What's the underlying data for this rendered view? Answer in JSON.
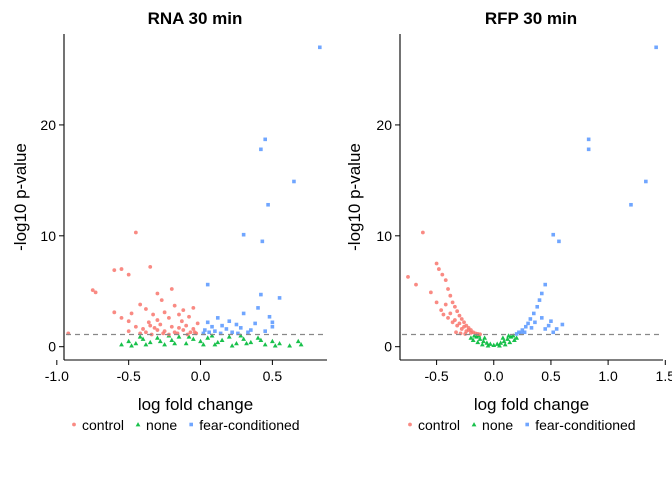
{
  "chart_data": [
    {
      "type": "scatter",
      "title": "RNA 30 min",
      "xlabel": "log fold change",
      "ylabel": "-log10 p-value",
      "xlim": [
        -0.95,
        0.88
      ],
      "ylim": [
        -1.2,
        28.2
      ],
      "xticks": [
        -1.0,
        -0.5,
        0.0,
        0.5
      ],
      "xtick_labels": [
        "-1.0",
        "-0.5",
        "0.0",
        "0.5"
      ],
      "yticks": [
        0,
        10,
        20
      ],
      "ytick_labels": [
        "0",
        "10",
        "20"
      ],
      "threshold_y": 1.1,
      "grid": false,
      "legend_position": "bottom",
      "series": [
        {
          "name": "control",
          "color": "#F8766D",
          "marker": "circle",
          "points": [
            [
              -0.92,
              1.2
            ],
            [
              -0.75,
              5.1
            ],
            [
              -0.73,
              4.9
            ],
            [
              -0.6,
              6.9
            ],
            [
              -0.55,
              7.0
            ],
            [
              -0.5,
              6.5
            ],
            [
              -0.45,
              10.3
            ],
            [
              -0.35,
              7.2
            ],
            [
              -0.3,
              4.8
            ],
            [
              -0.27,
              4.2
            ],
            [
              -0.2,
              5.2
            ],
            [
              -0.18,
              3.7
            ],
            [
              -0.6,
              3.1
            ],
            [
              -0.55,
              2.6
            ],
            [
              -0.5,
              2.3
            ],
            [
              -0.48,
              3.0
            ],
            [
              -0.42,
              3.8
            ],
            [
              -0.38,
              3.4
            ],
            [
              -0.33,
              2.9
            ],
            [
              -0.3,
              2.4
            ],
            [
              -0.25,
              3.1
            ],
            [
              -0.22,
              2.6
            ],
            [
              -0.15,
              2.9
            ],
            [
              -0.12,
              3.3
            ],
            [
              -0.08,
              2.7
            ],
            [
              -0.05,
              3.5
            ],
            [
              -0.45,
              1.8
            ],
            [
              -0.4,
              1.6
            ],
            [
              -0.35,
              1.9
            ],
            [
              -0.3,
              1.5
            ],
            [
              -0.28,
              2.0
            ],
            [
              -0.25,
              1.4
            ],
            [
              -0.2,
              1.8
            ],
            [
              -0.18,
              1.3
            ],
            [
              -0.15,
              1.7
            ],
            [
              -0.12,
              1.5
            ],
            [
              -0.1,
              1.9
            ],
            [
              -0.07,
              1.3
            ],
            [
              -0.05,
              1.6
            ],
            [
              -0.03,
              1.2
            ],
            [
              -0.42,
              1.2
            ],
            [
              -0.38,
              1.3
            ],
            [
              -0.34,
              1.1
            ],
            [
              -0.26,
              1.2
            ],
            [
              -0.22,
              1.1
            ],
            [
              -0.16,
              1.2
            ],
            [
              -0.09,
              1.1
            ],
            [
              -0.04,
              1.3
            ],
            [
              -0.5,
              1.4
            ],
            [
              -0.32,
              1.7
            ],
            [
              -0.02,
              2.1
            ],
            [
              -0.13,
              2.3
            ],
            [
              -0.36,
              2.2
            ]
          ]
        },
        {
          "name": "none",
          "color": "#00BA38",
          "marker": "triangle",
          "points": [
            [
              -0.55,
              0.2
            ],
            [
              -0.5,
              0.5
            ],
            [
              -0.45,
              0.3
            ],
            [
              -0.4,
              0.7
            ],
            [
              -0.35,
              0.4
            ],
            [
              -0.3,
              0.8
            ],
            [
              -0.25,
              0.2
            ],
            [
              -0.2,
              0.6
            ],
            [
              -0.15,
              0.9
            ],
            [
              -0.1,
              0.3
            ],
            [
              -0.05,
              0.7
            ],
            [
              0.0,
              0.5
            ],
            [
              0.05,
              0.8
            ],
            [
              0.1,
              0.2
            ],
            [
              0.15,
              0.6
            ],
            [
              0.2,
              0.9
            ],
            [
              0.25,
              0.3
            ],
            [
              0.3,
              0.7
            ],
            [
              0.35,
              0.4
            ],
            [
              0.4,
              0.8
            ],
            [
              0.45,
              0.2
            ],
            [
              0.5,
              0.5
            ],
            [
              0.55,
              0.3
            ],
            [
              -0.48,
              0.1
            ],
            [
              -0.38,
              0.2
            ],
            [
              -0.28,
              0.5
            ],
            [
              -0.18,
              0.3
            ],
            [
              -0.08,
              0.9
            ],
            [
              0.02,
              0.2
            ],
            [
              0.12,
              0.4
            ],
            [
              0.22,
              0.1
            ],
            [
              0.32,
              0.3
            ],
            [
              0.42,
              0.6
            ],
            [
              0.52,
              0.1
            ],
            [
              0.68,
              0.5
            ],
            [
              0.7,
              0.2
            ],
            [
              0.62,
              0.1
            ],
            [
              -0.42,
              0.9
            ],
            [
              -0.22,
              1.0
            ],
            [
              0.08,
              1.0
            ],
            [
              0.28,
              1.0
            ]
          ]
        },
        {
          "name": "fear-conditioned",
          "color": "#619CFF",
          "marker": "square",
          "points": [
            [
              0.83,
              27.0
            ],
            [
              0.45,
              18.7
            ],
            [
              0.42,
              17.8
            ],
            [
              0.65,
              14.9
            ],
            [
              0.47,
              12.8
            ],
            [
              0.3,
              10.1
            ],
            [
              0.43,
              9.5
            ],
            [
              0.05,
              5.6
            ],
            [
              0.55,
              4.4
            ],
            [
              0.42,
              4.7
            ],
            [
              0.4,
              3.5
            ],
            [
              0.3,
              3.0
            ],
            [
              0.25,
              2.0
            ],
            [
              0.2,
              2.3
            ],
            [
              0.15,
              1.9
            ],
            [
              0.12,
              2.6
            ],
            [
              0.08,
              1.8
            ],
            [
              0.05,
              2.2
            ],
            [
              0.03,
              1.5
            ],
            [
              0.1,
              1.4
            ],
            [
              0.18,
              1.6
            ],
            [
              0.22,
              1.3
            ],
            [
              0.28,
              1.7
            ],
            [
              0.35,
              1.5
            ],
            [
              0.38,
              2.1
            ],
            [
              0.48,
              2.7
            ],
            [
              0.5,
              1.8
            ],
            [
              0.02,
              1.2
            ],
            [
              0.06,
              1.3
            ],
            [
              0.14,
              1.2
            ],
            [
              0.26,
              1.2
            ],
            [
              0.33,
              1.3
            ],
            [
              0.45,
              1.4
            ],
            [
              0.5,
              2.2
            ]
          ]
        }
      ]
    },
    {
      "type": "scatter",
      "title": "RFP 30 min",
      "xlabel": "log fold change",
      "ylabel": "-log10 p-value",
      "xlim": [
        -0.82,
        1.48
      ],
      "ylim": [
        -1.2,
        28.2
      ],
      "xticks": [
        -0.5,
        0.0,
        0.5,
        1.0,
        1.5
      ],
      "xtick_labels": [
        "-0.5",
        "0.0",
        "0.5",
        "1.0",
        "1.5"
      ],
      "yticks": [
        0,
        10,
        20
      ],
      "ytick_labels": [
        "0",
        "10",
        "20"
      ],
      "threshold_y": 1.1,
      "grid": false,
      "legend_position": "bottom",
      "series": [
        {
          "name": "control",
          "color": "#F8766D",
          "marker": "circle",
          "points": [
            [
              -0.62,
              10.3
            ],
            [
              -0.75,
              6.3
            ],
            [
              -0.68,
              5.6
            ],
            [
              -0.5,
              7.5
            ],
            [
              -0.48,
              7.0
            ],
            [
              -0.45,
              6.5
            ],
            [
              -0.42,
              6.0
            ],
            [
              -0.4,
              5.2
            ],
            [
              -0.38,
              4.6
            ],
            [
              -0.36,
              4.0
            ],
            [
              -0.34,
              3.6
            ],
            [
              -0.32,
              3.2
            ],
            [
              -0.3,
              2.8
            ],
            [
              -0.28,
              2.5
            ],
            [
              -0.26,
              2.2
            ],
            [
              -0.24,
              1.9
            ],
            [
              -0.22,
              1.7
            ],
            [
              -0.2,
              1.5
            ],
            [
              -0.18,
              1.3
            ],
            [
              -0.16,
              1.2
            ],
            [
              -0.14,
              1.15
            ],
            [
              -0.12,
              1.12
            ],
            [
              -0.55,
              4.9
            ],
            [
              -0.5,
              4.0
            ],
            [
              -0.46,
              3.3
            ],
            [
              -0.44,
              2.9
            ],
            [
              -0.4,
              2.6
            ],
            [
              -0.36,
              2.2
            ],
            [
              -0.32,
              1.9
            ],
            [
              -0.28,
              1.6
            ],
            [
              -0.24,
              1.4
            ],
            [
              -0.2,
              1.25
            ],
            [
              -0.42,
              3.8
            ],
            [
              -0.38,
              3.0
            ],
            [
              -0.34,
              2.4
            ],
            [
              -0.3,
              2.1
            ],
            [
              -0.26,
              1.8
            ],
            [
              -0.22,
              1.5
            ],
            [
              -0.33,
              1.3
            ],
            [
              -0.29,
              1.2
            ],
            [
              -0.25,
              1.15
            ]
          ]
        },
        {
          "name": "none",
          "color": "#00BA38",
          "marker": "triangle",
          "points": [
            [
              0.0,
              0.15
            ],
            [
              -0.03,
              0.25
            ],
            [
              0.03,
              0.25
            ],
            [
              -0.06,
              0.35
            ],
            [
              0.06,
              0.35
            ],
            [
              -0.09,
              0.5
            ],
            [
              0.09,
              0.5
            ],
            [
              -0.12,
              0.7
            ],
            [
              0.12,
              0.7
            ],
            [
              -0.15,
              0.9
            ],
            [
              0.15,
              0.9
            ],
            [
              -0.17,
              1.0
            ],
            [
              0.17,
              1.0
            ],
            [
              -0.14,
              0.4
            ],
            [
              0.14,
              0.4
            ],
            [
              -0.1,
              0.2
            ],
            [
              0.1,
              0.2
            ],
            [
              -0.18,
              0.6
            ],
            [
              0.18,
              0.6
            ],
            [
              -0.2,
              0.8
            ],
            [
              0.2,
              0.8
            ],
            [
              -0.05,
              0.1
            ],
            [
              0.05,
              0.1
            ],
            [
              -0.13,
              1.0
            ],
            [
              0.13,
              1.0
            ],
            [
              -0.08,
              0.8
            ],
            [
              0.08,
              0.8
            ]
          ]
        },
        {
          "name": "fear-conditioned",
          "color": "#619CFF",
          "marker": "square",
          "points": [
            [
              1.42,
              27.0
            ],
            [
              0.83,
              18.7
            ],
            [
              0.83,
              17.8
            ],
            [
              1.33,
              14.9
            ],
            [
              1.2,
              12.8
            ],
            [
              0.52,
              10.1
            ],
            [
              0.57,
              9.5
            ],
            [
              0.45,
              5.6
            ],
            [
              0.42,
              4.8
            ],
            [
              0.4,
              4.2
            ],
            [
              0.38,
              3.6
            ],
            [
              0.35,
              3.0
            ],
            [
              0.32,
              2.5
            ],
            [
              0.3,
              2.1
            ],
            [
              0.28,
              1.8
            ],
            [
              0.25,
              1.5
            ],
            [
              0.22,
              1.3
            ],
            [
              0.2,
              1.15
            ],
            [
              0.5,
              2.3
            ],
            [
              0.48,
              1.9
            ],
            [
              0.45,
              1.6
            ],
            [
              0.42,
              2.6
            ],
            [
              0.36,
              2.2
            ],
            [
              0.33,
              1.7
            ],
            [
              0.27,
              1.3
            ],
            [
              0.24,
              1.2
            ],
            [
              0.55,
              1.6
            ],
            [
              0.52,
              1.3
            ],
            [
              0.6,
              2.0
            ]
          ]
        }
      ]
    }
  ]
}
